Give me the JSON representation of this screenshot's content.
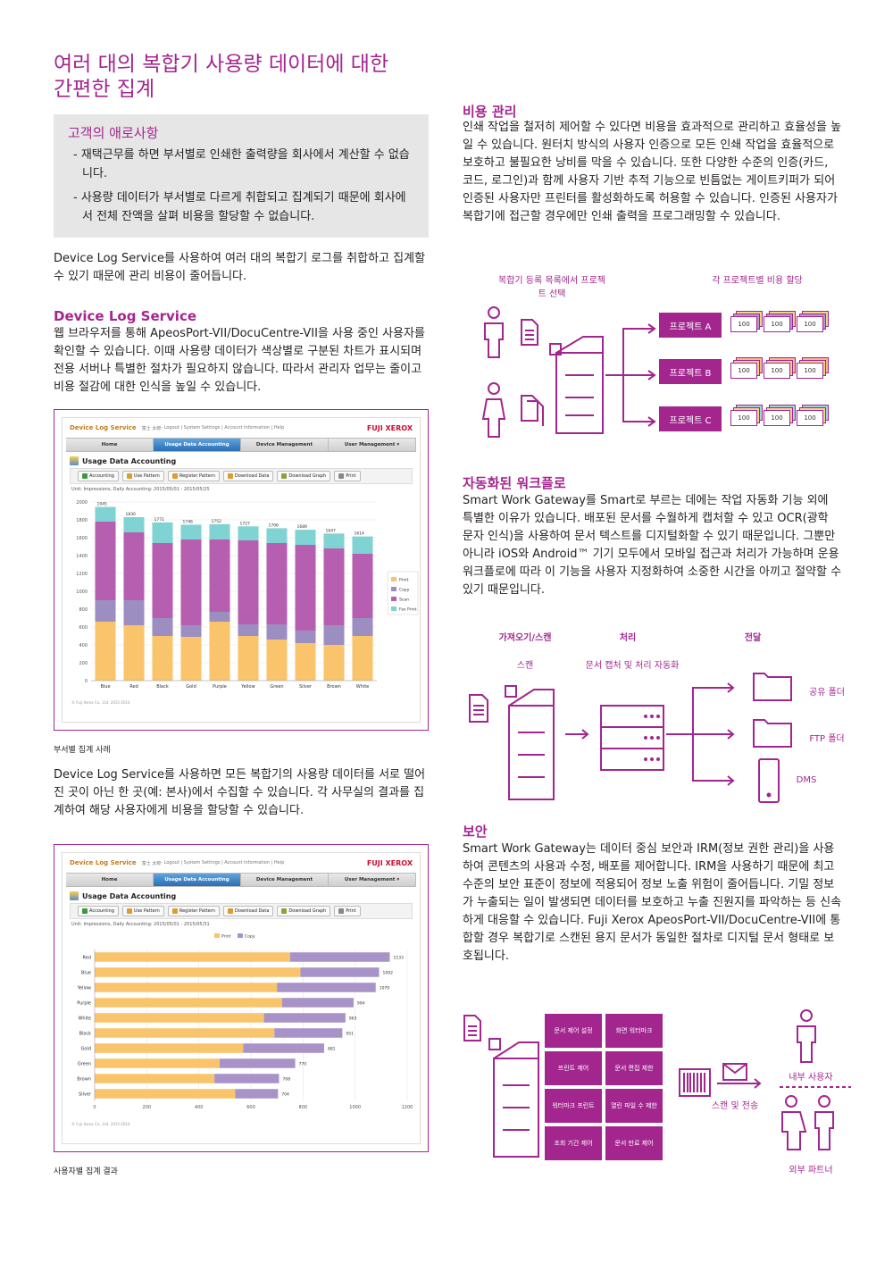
{
  "heading": {
    "line1": "여러 대의 복합기 사용량 데이터에 대한",
    "line2": "간편한 집계"
  },
  "concerns": {
    "title": "고객의 애로사항",
    "items": [
      "- 재택근무를 하면 부서별로 인쇄한 출력량을 회사에서 계산할 수 없습니다.",
      "- 사용량 데이터가 부서별로 다르게 취합되고 집계되기 때문에 회사에서 전체 잔액을 살펴 비용을 할당할 수 없습니다."
    ]
  },
  "intro_para": "Device Log Service를 사용하여 여러 대의 복합기 로그를 취합하고 집계할 수 있기 때문에 관리 비용이 줄어듭니다.",
  "dls": {
    "title": "Device Log Service",
    "body": "웹 브라우저를 통해 ApeosPort-VII/DocuCentre-VII을 사용 중인 사용자를 확인할 수 있습니다. 이때 사용량 데이터가 색상별로 구분된 차트가 표시되며 전용 서버나 특별한 절차가 필요하지 않습니다. 따라서 관리자 업무는 줄이고 비용 절감에 대한 인식을 높일 수 있습니다."
  },
  "app": {
    "brand": "Device Log Service",
    "user": "富士 太郎",
    "links": "- Logout | System Settings | Account Information | Help",
    "logo": "FUJI XEROX",
    "tabs": [
      "Home",
      "Usage Data Accounting",
      "Device Management",
      "User Management ▾"
    ],
    "page_title": "Usage Data Accounting",
    "toolbar": [
      "Accounting",
      "Use Pattern",
      "Register Pattern",
      "Download Data",
      "Download Graph",
      "Print"
    ],
    "copyright": "© Fuji Xerox Co., Ltd. 2015-2014"
  },
  "shot1": {
    "unit": "Unit: Impressions, Daily Accounting: 2015/05/01 - 2015/05/25"
  },
  "shot2": {
    "unit": "Unit: Impressions, Daily Accounting: 2015/05/01 - 2015/05/31"
  },
  "caption1": "부서별 집계 사례",
  "collect_para": "Device Log Service를 사용하면 모든 복합기의 사용량 데이터를 서로 떨어진 곳이 아닌 한 곳(예: 본사)에서 수집할 수 있습니다. 각 사무실의 결과를 집계하여 해당 사용자에게 비용을 할당할 수 있습니다.",
  "caption2": "사용자별 집계 결과",
  "chart_data": [
    {
      "type": "bar",
      "stacked": true,
      "categories": [
        "Blue",
        "Red",
        "Black",
        "Gold",
        "Purple",
        "Yellow",
        "Green",
        "Silver",
        "Brown",
        "White"
      ],
      "totals": [
        1945,
        1830,
        1771,
        1746,
        1752,
        1727,
        1706,
        1689,
        1647,
        1614
      ],
      "series": [
        {
          "name": "Print",
          "values": [
            660,
            620,
            500,
            490,
            660,
            500,
            460,
            420,
            400,
            500
          ],
          "color": "#f9c46b"
        },
        {
          "name": "Copy",
          "values": [
            240,
            280,
            200,
            130,
            110,
            130,
            170,
            140,
            220,
            200
          ],
          "color": "#9d8ec2"
        },
        {
          "name": "Scan",
          "values": [
            880,
            760,
            840,
            960,
            810,
            940,
            910,
            960,
            860,
            720
          ],
          "color": "#b65fb0"
        },
        {
          "name": "Fax Print",
          "values": [
            165,
            170,
            231,
            166,
            172,
            157,
            166,
            169,
            167,
            194
          ],
          "color": "#7fd3d2"
        }
      ],
      "yticks": [
        0,
        200,
        400,
        600,
        800,
        1000,
        1200,
        1400,
        1600,
        1800,
        2000
      ],
      "ylim": [
        0,
        2000
      ],
      "legend": "right"
    },
    {
      "type": "bar",
      "orientation": "horizontal",
      "stacked": true,
      "categories": [
        "Red",
        "Blue",
        "Yellow",
        "Purple",
        "White",
        "Black",
        "Gold",
        "Green",
        "Brown",
        "Silver"
      ],
      "totals": [
        1133,
        1092,
        1079,
        994,
        963,
        951,
        881,
        770,
        708,
        704
      ],
      "series": [
        {
          "name": "Print",
          "values": [
            750,
            790,
            700,
            720,
            650,
            690,
            570,
            480,
            460,
            540
          ],
          "color": "#f9c46b"
        },
        {
          "name": "Copy",
          "values": [
            383,
            302,
            379,
            274,
            313,
            261,
            311,
            290,
            248,
            164
          ],
          "color": "#a893c8"
        }
      ],
      "xticks": [
        0,
        200,
        400,
        600,
        800,
        1000,
        1200
      ],
      "xlim": [
        0,
        1200
      ],
      "legend": "top"
    }
  ],
  "cost": {
    "title": "비용 관리",
    "body": "인쇄 작업을 철저히 제어할 수 있다면 비용을 효과적으로 관리하고 효율성을 높일 수 있습니다. 원터치 방식의 사용자 인증으로 모든 인쇄 작업을 효율적으로 보호하고 불필요한 낭비를 막을 수 있습니다. 또한 다양한 수준의 인증(카드, 코드, 로그인)과 함께 사용자 기반 추적 기능으로 빈틈없는 게이트키퍼가 되어 인증된 사용자만 프린터를 활성화하도록 허용할 수 있습니다. 인증된 사용자가 복합기에 접근할 경우에만 인쇄 출력을 프로그래밍할 수 있습니다.",
    "label_left": "복합기 등록 목록에서 프로젝트 선택",
    "label_right": "각 프로젝트별 비용 할당",
    "projects": [
      "프로젝트 A",
      "프로젝트 B",
      "프로젝트 C"
    ],
    "bill": "100"
  },
  "workflow": {
    "title": "자동화된 워크플로",
    "body": "Smart Work Gateway를 Smart로 부르는 데에는 작업 자동화 기능 외에 특별한 이유가 있습니다. 배포된 문서를 수월하게 캡처할 수 있고 OCR(광학 문자 인식)을 사용하여 문서 텍스트를 디지털화할 수 있기 때문입니다. 그뿐만 아니라 iOS와 Android™ 기기 모두에서 모바일 접근과 처리가 가능하며 운용 워크플로에 따라 이 기능을 사용자 지정화하여 소중한 시간을 아끼고 절약할 수 있기 때문입니다.",
    "headers": [
      "가져오기/스캔",
      "처리",
      "전달"
    ],
    "sub_scan": "스캔",
    "sub_process": "문서 캡처 및 처리 자동화",
    "destinations": [
      "공유 폴더",
      "FTP 폴더",
      "DMS"
    ]
  },
  "security": {
    "title": "보안",
    "body": "Smart Work Gateway는 데이터 중심 보안과 IRM(정보 권한 관리)을 사용하여 콘텐츠의 사용과 수정, 배포를 제어합니다. IRM을 사용하기 때문에 최고 수준의 보안 표준이 정보에 적용되어 정보 노출 위험이 줄어듭니다. 기밀 정보가 누출되는 일이 발생되면 데이터를 보호하고 누출 진원지를 파악하는 등 신속하게 대응할 수 있습니다. Fuji Xerox ApeosPort-VII/DocuCentre-VII에 통합할 경우 복합기로 스캔된 용지 문서가 동일한 절차로 디지털 문서 형태로 보호됩니다.",
    "controls": [
      "문서 제어 설정",
      "화면 워터마크",
      "프린트 제어",
      "문서 편집 제한",
      "워터마크 프린트",
      "열린 파일 수 제한",
      "조회 기간 제어",
      "문서 만료 제어"
    ],
    "scan_send": "스캔 및 전송",
    "internal": "내부 사용자",
    "external": "외부 파트너"
  }
}
